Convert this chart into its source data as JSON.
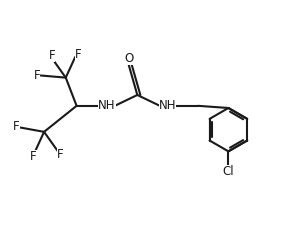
{
  "bg_color": "#ffffff",
  "line_color": "#1a1a1a",
  "text_color": "#1a1a1a",
  "bond_lw": 1.5,
  "font_size": 8.5,
  "figsize": [
    3.05,
    2.29
  ],
  "dpi": 100,
  "xlim": [
    -0.2,
    6.8
  ],
  "ylim": [
    0.5,
    4.5
  ]
}
